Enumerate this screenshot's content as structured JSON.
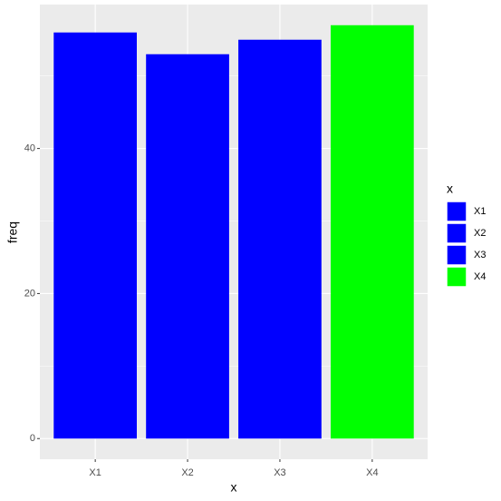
{
  "chart_data": {
    "type": "bar",
    "x_label": "x",
    "y_label": "freq",
    "legend_title": "x",
    "categories": [
      "X1",
      "X2",
      "X3",
      "X4"
    ],
    "values": [
      56,
      53,
      55,
      57
    ],
    "colors": [
      "#0000ff",
      "#0000ff",
      "#0000ff",
      "#00ff00"
    ],
    "ylim": [
      -2.85,
      59.85
    ],
    "yticks": [
      0,
      20,
      40
    ],
    "minor_yticks": [
      10,
      30,
      50
    ],
    "grid": true
  }
}
